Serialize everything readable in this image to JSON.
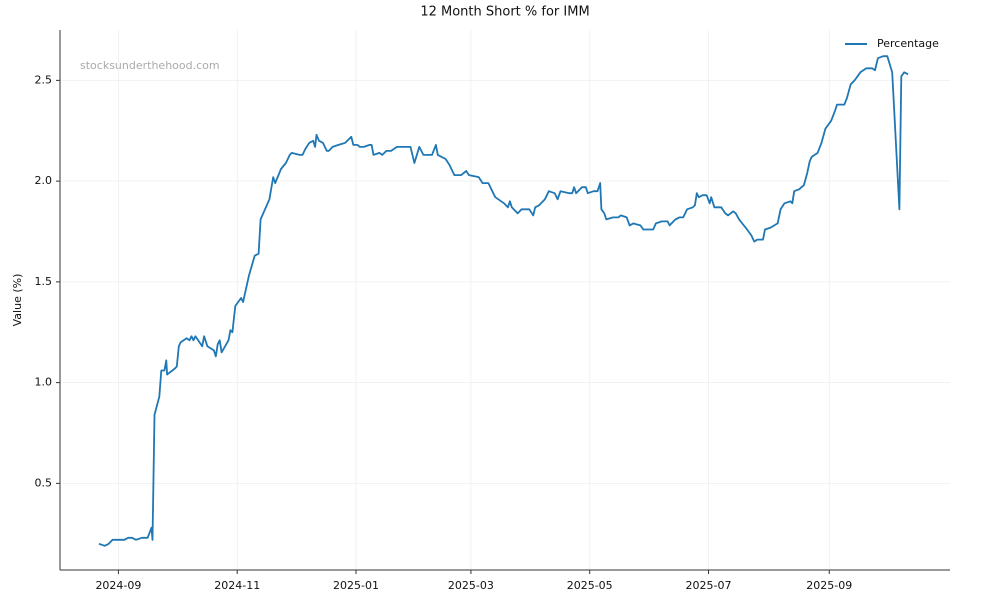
{
  "chart_data": {
    "type": "line",
    "title": "12 Month Short % for IMM",
    "ylabel": "Value (%)",
    "watermark": "stocksunderthehood.com",
    "legend": "upper right",
    "grid": true,
    "xlim": [
      -30,
      427
    ],
    "xticks": [
      {
        "value": 0,
        "label": "2024-09"
      },
      {
        "value": 61,
        "label": "2024-11"
      },
      {
        "value": 122,
        "label": "2025-01"
      },
      {
        "value": 181,
        "label": "2025-03"
      },
      {
        "value": 242,
        "label": "2025-05"
      },
      {
        "value": 303,
        "label": "2025-07"
      },
      {
        "value": 365,
        "label": "2025-09"
      }
    ],
    "ylim": [
      0.07,
      2.75
    ],
    "yticks": [
      0.5,
      {
        "value": 1,
        "label": "1.0"
      },
      1.5,
      {
        "value": 2,
        "label": "2.0"
      },
      2.5
    ],
    "x": [
      -10,
      -7,
      -5,
      -3,
      3,
      5,
      7,
      9,
      12,
      15,
      17,
      17.5,
      18.5,
      21,
      22,
      23.6,
      24.6,
      25,
      29,
      30,
      31,
      32,
      35,
      36.5,
      37.5,
      38.5,
      39.5,
      43,
      44,
      45.7,
      49,
      50,
      51,
      52,
      53,
      56.5,
      57.5,
      58.5,
      60,
      63,
      64,
      67,
      70,
      72,
      73,
      77.5,
      79.5,
      80.5,
      83.5,
      86,
      88,
      89,
      93,
      94.5,
      96,
      98,
      100,
      101,
      101.7,
      103,
      105,
      107,
      108,
      110,
      113,
      116.5,
      119.6,
      120.6,
      122.7,
      124,
      126,
      129,
      130,
      131,
      134,
      135.5,
      137.6,
      140,
      143,
      150,
      152,
      154.5,
      156.6,
      161,
      163,
      164,
      168,
      170,
      172.5,
      176,
      178.6,
      180,
      185,
      187,
      190,
      192,
      193.5,
      198,
      200,
      201,
      202,
      205,
      207,
      211,
      213,
      214,
      216,
      219,
      221,
      224,
      225.5,
      227,
      231.5,
      233,
      234,
      235,
      238,
      240,
      241,
      244,
      246,
      247.4,
      248,
      249.5,
      250.5,
      254,
      256.7,
      258,
      261,
      262.5,
      264.4,
      268,
      269.5,
      274.6,
      276,
      279,
      282,
      283,
      286,
      288,
      290,
      292,
      295,
      296,
      297,
      298,
      300,
      302,
      303.6,
      304.4,
      306,
      309.5,
      311.6,
      313,
      315.7,
      317,
      318.7,
      322.8,
      325,
      326.5,
      328,
      331,
      332,
      335,
      338.5,
      340,
      342,
      345,
      346,
      347,
      349.6,
      352,
      353.7,
      355,
      356,
      359,
      361,
      363,
      366,
      368,
      369,
      372.7,
      374,
      376,
      378,
      381,
      384,
      387,
      388.5,
      390,
      392.7,
      394.8,
      397.3,
      401,
      402,
      403.5,
      405.5
    ],
    "series": [
      {
        "name": "Percentage",
        "color": "#1f77b4",
        "values": [
          0.2,
          0.19,
          0.2,
          0.22,
          0.22,
          0.23,
          0.23,
          0.22,
          0.23,
          0.23,
          0.28,
          0.22,
          0.84,
          0.93,
          1.06,
          1.06,
          1.11,
          1.04,
          1.07,
          1.08,
          1.18,
          1.2,
          1.22,
          1.21,
          1.23,
          1.21,
          1.23,
          1.18,
          1.23,
          1.18,
          1.16,
          1.13,
          1.19,
          1.21,
          1.15,
          1.21,
          1.26,
          1.25,
          1.38,
          1.42,
          1.4,
          1.53,
          1.63,
          1.64,
          1.81,
          1.91,
          2.02,
          1.99,
          2.06,
          2.09,
          2.13,
          2.14,
          2.13,
          2.13,
          2.16,
          2.19,
          2.2,
          2.17,
          2.23,
          2.2,
          2.19,
          2.15,
          2.15,
          2.17,
          2.18,
          2.19,
          2.22,
          2.18,
          2.18,
          2.17,
          2.17,
          2.18,
          2.18,
          2.13,
          2.14,
          2.13,
          2.15,
          2.15,
          2.17,
          2.17,
          2.09,
          2.17,
          2.13,
          2.13,
          2.18,
          2.13,
          2.11,
          2.08,
          2.03,
          2.03,
          2.05,
          2.03,
          2.02,
          1.99,
          1.99,
          1.95,
          1.92,
          1.89,
          1.87,
          1.9,
          1.87,
          1.84,
          1.86,
          1.86,
          1.83,
          1.87,
          1.88,
          1.91,
          1.95,
          1.94,
          1.91,
          1.95,
          1.94,
          1.94,
          1.97,
          1.94,
          1.97,
          1.97,
          1.94,
          1.95,
          1.95,
          1.99,
          1.86,
          1.84,
          1.81,
          1.82,
          1.82,
          1.83,
          1.82,
          1.78,
          1.79,
          1.78,
          1.76,
          1.76,
          1.79,
          1.8,
          1.8,
          1.78,
          1.81,
          1.82,
          1.82,
          1.86,
          1.87,
          1.88,
          1.94,
          1.92,
          1.93,
          1.93,
          1.89,
          1.92,
          1.87,
          1.87,
          1.84,
          1.83,
          1.85,
          1.84,
          1.81,
          1.76,
          1.73,
          1.7,
          1.71,
          1.71,
          1.76,
          1.77,
          1.79,
          1.86,
          1.89,
          1.9,
          1.89,
          1.95,
          1.96,
          1.98,
          2.04,
          2.1,
          2.12,
          2.14,
          2.19,
          2.26,
          2.3,
          2.35,
          2.38,
          2.38,
          2.41,
          2.48,
          2.5,
          2.54,
          2.56,
          2.56,
          2.55,
          2.61,
          2.62,
          2.62,
          2.54,
          1.86,
          2.52,
          2.54,
          2.53
        ]
      }
    ]
  }
}
